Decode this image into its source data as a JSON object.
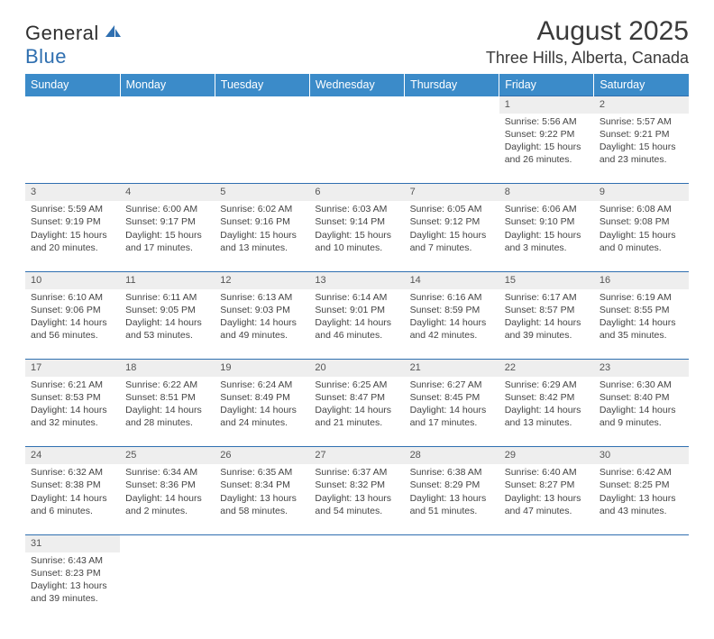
{
  "logo": {
    "text1": "General",
    "text2": "Blue"
  },
  "title": "August 2025",
  "location": "Three Hills, Alberta, Canada",
  "headers": [
    "Sunday",
    "Monday",
    "Tuesday",
    "Wednesday",
    "Thursday",
    "Friday",
    "Saturday"
  ],
  "colors": {
    "header_bg": "#3b8bc9",
    "rule": "#2f6fb0",
    "daynum_bg": "#eeeeee"
  },
  "weeks": [
    [
      null,
      null,
      null,
      null,
      null,
      {
        "n": "1",
        "sunrise": "Sunrise: 5:56 AM",
        "sunset": "Sunset: 9:22 PM",
        "daylight": "Daylight: 15 hours and 26 minutes."
      },
      {
        "n": "2",
        "sunrise": "Sunrise: 5:57 AM",
        "sunset": "Sunset: 9:21 PM",
        "daylight": "Daylight: 15 hours and 23 minutes."
      }
    ],
    [
      {
        "n": "3",
        "sunrise": "Sunrise: 5:59 AM",
        "sunset": "Sunset: 9:19 PM",
        "daylight": "Daylight: 15 hours and 20 minutes."
      },
      {
        "n": "4",
        "sunrise": "Sunrise: 6:00 AM",
        "sunset": "Sunset: 9:17 PM",
        "daylight": "Daylight: 15 hours and 17 minutes."
      },
      {
        "n": "5",
        "sunrise": "Sunrise: 6:02 AM",
        "sunset": "Sunset: 9:16 PM",
        "daylight": "Daylight: 15 hours and 13 minutes."
      },
      {
        "n": "6",
        "sunrise": "Sunrise: 6:03 AM",
        "sunset": "Sunset: 9:14 PM",
        "daylight": "Daylight: 15 hours and 10 minutes."
      },
      {
        "n": "7",
        "sunrise": "Sunrise: 6:05 AM",
        "sunset": "Sunset: 9:12 PM",
        "daylight": "Daylight: 15 hours and 7 minutes."
      },
      {
        "n": "8",
        "sunrise": "Sunrise: 6:06 AM",
        "sunset": "Sunset: 9:10 PM",
        "daylight": "Daylight: 15 hours and 3 minutes."
      },
      {
        "n": "9",
        "sunrise": "Sunrise: 6:08 AM",
        "sunset": "Sunset: 9:08 PM",
        "daylight": "Daylight: 15 hours and 0 minutes."
      }
    ],
    [
      {
        "n": "10",
        "sunrise": "Sunrise: 6:10 AM",
        "sunset": "Sunset: 9:06 PM",
        "daylight": "Daylight: 14 hours and 56 minutes."
      },
      {
        "n": "11",
        "sunrise": "Sunrise: 6:11 AM",
        "sunset": "Sunset: 9:05 PM",
        "daylight": "Daylight: 14 hours and 53 minutes."
      },
      {
        "n": "12",
        "sunrise": "Sunrise: 6:13 AM",
        "sunset": "Sunset: 9:03 PM",
        "daylight": "Daylight: 14 hours and 49 minutes."
      },
      {
        "n": "13",
        "sunrise": "Sunrise: 6:14 AM",
        "sunset": "Sunset: 9:01 PM",
        "daylight": "Daylight: 14 hours and 46 minutes."
      },
      {
        "n": "14",
        "sunrise": "Sunrise: 6:16 AM",
        "sunset": "Sunset: 8:59 PM",
        "daylight": "Daylight: 14 hours and 42 minutes."
      },
      {
        "n": "15",
        "sunrise": "Sunrise: 6:17 AM",
        "sunset": "Sunset: 8:57 PM",
        "daylight": "Daylight: 14 hours and 39 minutes."
      },
      {
        "n": "16",
        "sunrise": "Sunrise: 6:19 AM",
        "sunset": "Sunset: 8:55 PM",
        "daylight": "Daylight: 14 hours and 35 minutes."
      }
    ],
    [
      {
        "n": "17",
        "sunrise": "Sunrise: 6:21 AM",
        "sunset": "Sunset: 8:53 PM",
        "daylight": "Daylight: 14 hours and 32 minutes."
      },
      {
        "n": "18",
        "sunrise": "Sunrise: 6:22 AM",
        "sunset": "Sunset: 8:51 PM",
        "daylight": "Daylight: 14 hours and 28 minutes."
      },
      {
        "n": "19",
        "sunrise": "Sunrise: 6:24 AM",
        "sunset": "Sunset: 8:49 PM",
        "daylight": "Daylight: 14 hours and 24 minutes."
      },
      {
        "n": "20",
        "sunrise": "Sunrise: 6:25 AM",
        "sunset": "Sunset: 8:47 PM",
        "daylight": "Daylight: 14 hours and 21 minutes."
      },
      {
        "n": "21",
        "sunrise": "Sunrise: 6:27 AM",
        "sunset": "Sunset: 8:45 PM",
        "daylight": "Daylight: 14 hours and 17 minutes."
      },
      {
        "n": "22",
        "sunrise": "Sunrise: 6:29 AM",
        "sunset": "Sunset: 8:42 PM",
        "daylight": "Daylight: 14 hours and 13 minutes."
      },
      {
        "n": "23",
        "sunrise": "Sunrise: 6:30 AM",
        "sunset": "Sunset: 8:40 PM",
        "daylight": "Daylight: 14 hours and 9 minutes."
      }
    ],
    [
      {
        "n": "24",
        "sunrise": "Sunrise: 6:32 AM",
        "sunset": "Sunset: 8:38 PM",
        "daylight": "Daylight: 14 hours and 6 minutes."
      },
      {
        "n": "25",
        "sunrise": "Sunrise: 6:34 AM",
        "sunset": "Sunset: 8:36 PM",
        "daylight": "Daylight: 14 hours and 2 minutes."
      },
      {
        "n": "26",
        "sunrise": "Sunrise: 6:35 AM",
        "sunset": "Sunset: 8:34 PM",
        "daylight": "Daylight: 13 hours and 58 minutes."
      },
      {
        "n": "27",
        "sunrise": "Sunrise: 6:37 AM",
        "sunset": "Sunset: 8:32 PM",
        "daylight": "Daylight: 13 hours and 54 minutes."
      },
      {
        "n": "28",
        "sunrise": "Sunrise: 6:38 AM",
        "sunset": "Sunset: 8:29 PM",
        "daylight": "Daylight: 13 hours and 51 minutes."
      },
      {
        "n": "29",
        "sunrise": "Sunrise: 6:40 AM",
        "sunset": "Sunset: 8:27 PM",
        "daylight": "Daylight: 13 hours and 47 minutes."
      },
      {
        "n": "30",
        "sunrise": "Sunrise: 6:42 AM",
        "sunset": "Sunset: 8:25 PM",
        "daylight": "Daylight: 13 hours and 43 minutes."
      }
    ],
    [
      {
        "n": "31",
        "sunrise": "Sunrise: 6:43 AM",
        "sunset": "Sunset: 8:23 PM",
        "daylight": "Daylight: 13 hours and 39 minutes."
      },
      null,
      null,
      null,
      null,
      null,
      null
    ]
  ]
}
